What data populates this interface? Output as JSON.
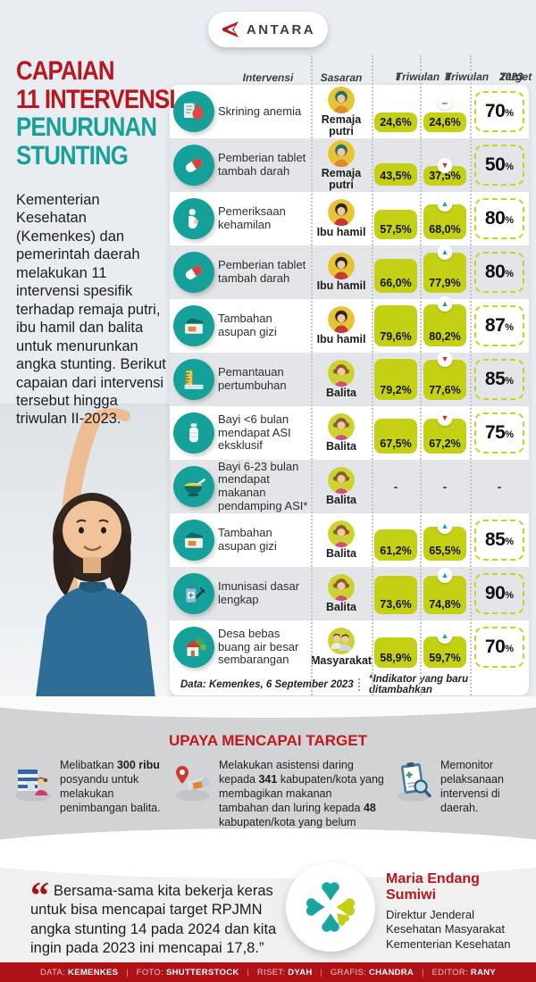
{
  "logo": {
    "text": "ANTARA"
  },
  "title": {
    "line1": "CAPAIAN",
    "line2": "11 INTERVENSI",
    "line3": "PENURUNAN",
    "line4": "STUNTING"
  },
  "intro": "Kementerian Kesehatan (Kemenkes) dan pemerintah daerah melakukan 11 intervensi spesifik terhadap remaja putri, ibu hamil dan balita untuk menurunkan angka stunting. Berikut capaian dari intervensi tersebut hingga triwulan II-2023.",
  "colors": {
    "accent_red": "#b5181e",
    "accent_teal": "#17a09a",
    "lime": "#c4d013",
    "stripe_gray": "#e3e5e8",
    "section_gray": "#d2d3d5",
    "credits_red": "#ae1116"
  },
  "table": {
    "headers": {
      "intervensi": "Intervensi",
      "sasaran": "Sasaran",
      "t1": "Triwulan",
      "t1_sub": "I",
      "t2": "Triwulan",
      "t2_sub": "II",
      "target": "Target",
      "target_sub": "2023"
    },
    "percent": "%",
    "rows": [
      {
        "icon": "anemia-screening-icon",
        "label": "Skrining anemia",
        "avatar": "remaja-putri-avatar",
        "sasaran": "Remaja putri",
        "t1": "24,6%",
        "t1_val": 24.6,
        "t2": "24,6%",
        "t2_val": 24.6,
        "trend": "flat",
        "target": "70"
      },
      {
        "icon": "tablet-icon",
        "label": "Pemberian tablet tambah darah",
        "avatar": "remaja-putri-avatar",
        "sasaran": "Remaja putri",
        "t1": "43,5%",
        "t1_val": 43.5,
        "t2": "37,5%",
        "t2_val": 37.5,
        "trend": "down",
        "target": "50"
      },
      {
        "icon": "pregnancy-check-icon",
        "label": "Pemeriksaan kehamilan",
        "avatar": "ibu-hamil-avatar",
        "sasaran": "Ibu hamil",
        "t1": "57,5%",
        "t1_val": 57.5,
        "t2": "68,0%",
        "t2_val": 68.0,
        "trend": "up",
        "target": "80"
      },
      {
        "icon": "tablet-icon",
        "label": "Pemberian tablet tambah darah",
        "avatar": "ibu-hamil-avatar",
        "sasaran": "Ibu hamil",
        "t1": "66,0%",
        "t1_val": 66.0,
        "t2": "77,9%",
        "t2_val": 77.9,
        "trend": "up",
        "target": "80"
      },
      {
        "icon": "food-box-icon",
        "label": "Tambahan asupan gizi",
        "avatar": "ibu-hamil-avatar",
        "sasaran": "Ibu hamil",
        "t1": "79,6%",
        "t1_val": 79.6,
        "t2": "80,2%",
        "t2_val": 80.2,
        "trend": "up",
        "target": "87"
      },
      {
        "icon": "growth-monitor-icon",
        "label": "Pemantauan pertumbuhan",
        "avatar": "balita-avatar",
        "sasaran": "Balita",
        "t1": "79,2%",
        "t1_val": 79.2,
        "t2": "77,6%",
        "t2_val": 77.6,
        "trend": "down",
        "target": "85"
      },
      {
        "icon": "breastfeeding-icon",
        "label": "Bayi <6 bulan mendapat ASI eksklusif",
        "avatar": "balita-avatar",
        "sasaran": "Balita",
        "t1": "67,5%",
        "t1_val": 67.5,
        "t2": "67,2%",
        "t2_val": 67.2,
        "trend": "down",
        "target": "75"
      },
      {
        "icon": "porridge-icon",
        "label": "Bayi 6-23 bulan mendapat makanan pendamping ASI*",
        "avatar": "balita-avatar",
        "sasaran": "Balita",
        "t1": "-",
        "t1_val": null,
        "t2": "-",
        "t2_val": null,
        "trend": null,
        "target": "-"
      },
      {
        "icon": "food-box-icon",
        "label": "Tambahan asupan gizi",
        "avatar": "balita-avatar",
        "sasaran": "Balita",
        "t1": "61,2%",
        "t1_val": 61.2,
        "t2": "65,5%",
        "t2_val": 65.5,
        "trend": "up",
        "target": "85"
      },
      {
        "icon": "immunization-icon",
        "label": "Imunisasi dasar lengkap",
        "avatar": "balita-avatar",
        "sasaran": "Balita",
        "t1": "73,6%",
        "t1_val": 73.6,
        "t2": "74,8%",
        "t2_val": 74.8,
        "trend": "up",
        "target": "90"
      },
      {
        "icon": "village-icon",
        "label": "Desa bebas buang air besar sembarangan",
        "avatar": "masyarakat-avatar",
        "sasaran": "Masyarakat",
        "t1": "58,9%",
        "t1_val": 58.9,
        "t2": "59,7%",
        "t2_val": 59.7,
        "trend": "up",
        "target": "70"
      }
    ],
    "footnote_left": "Data: Kemenkes, 6 September 2023",
    "footnote_right": "*Indikator yang baru ditambahkan"
  },
  "trend_glyphs": {
    "up": "▲",
    "down": "▼",
    "flat": "–"
  },
  "upaya": {
    "heading": "UPAYA MENCAPAI TARGET",
    "items": [
      {
        "icon": "posyandu-icon",
        "runs": [
          {
            "b": false,
            "t": "Melibatkan "
          },
          {
            "b": true,
            "t": "300 ribu"
          },
          {
            "b": false,
            "t": " posyandu untuk melakukan penimbangan balita."
          }
        ]
      },
      {
        "icon": "food-assistance-icon",
        "runs": [
          {
            "b": false,
            "t": "Melakukan asistensi daring kepada "
          },
          {
            "b": true,
            "t": "341"
          },
          {
            "b": false,
            "t": " kabupaten/kota yang membagikan makanan tambahan dan luring kepada "
          },
          {
            "b": true,
            "t": "48"
          },
          {
            "b": false,
            "t": " kabupaten/kota yang belum memberikan makanan tambahan."
          }
        ]
      },
      {
        "icon": "monitoring-icon",
        "runs": [
          {
            "b": false,
            "t": "Memonitor pelaksanaan intervensi di daerah."
          }
        ]
      }
    ]
  },
  "quote": {
    "mark": "“",
    "text": "Bersama-sama kita bekerja keras untuk bisa mencapai target RPJMN angka stunting 14 pada 2024 dan kita ingin pada 2023 ini mencapai 17,8.”",
    "author": "Maria Endang Sumiwi",
    "role": "Direktur Jenderal Kesehatan Masyarakat Kementerian Kesehatan"
  },
  "credits": {
    "separator": "|",
    "items": [
      {
        "label": "DATA:",
        "value": "KEMENKES"
      },
      {
        "label": "FOTO:",
        "value": "SHUTTERSTOCK"
      },
      {
        "label": "RISET:",
        "value": "DYAH"
      },
      {
        "label": "GRAFIS:",
        "value": "CHANDRA"
      },
      {
        "label": "EDITOR:",
        "value": "RANY"
      }
    ]
  },
  "chart_data": {
    "type": "table",
    "title": "Capaian 11 Intervensi Penurunan Stunting",
    "columns": [
      "Intervensi",
      "Sasaran",
      "Triwulan I",
      "Triwulan II",
      "Target 2023"
    ],
    "rows": [
      [
        "Skrining anemia",
        "Remaja putri",
        "24,6%",
        "24,6%",
        "70%"
      ],
      [
        "Pemberian tablet tambah darah",
        "Remaja putri",
        "43,5%",
        "37,5%",
        "50%"
      ],
      [
        "Pemeriksaan kehamilan",
        "Ibu hamil",
        "57,5%",
        "68,0%",
        "80%"
      ],
      [
        "Pemberian tablet tambah darah",
        "Ibu hamil",
        "66,0%",
        "77,9%",
        "80%"
      ],
      [
        "Tambahan asupan gizi",
        "Ibu hamil",
        "79,6%",
        "80,2%",
        "87%"
      ],
      [
        "Pemantauan pertumbuhan",
        "Balita",
        "79,2%",
        "77,6%",
        "85%"
      ],
      [
        "Bayi <6 bulan mendapat ASI eksklusif",
        "Balita",
        "67,5%",
        "67,2%",
        "75%"
      ],
      [
        "Bayi 6-23 bulan mendapat makanan pendamping ASI*",
        "Balita",
        "-",
        "-",
        "-"
      ],
      [
        "Tambahan asupan gizi",
        "Balita",
        "61,2%",
        "65,5%",
        "85%"
      ],
      [
        "Imunisasi dasar lengkap",
        "Balita",
        "73,6%",
        "74,8%",
        "90%"
      ],
      [
        "Desa bebas buang air besar sembarangan",
        "Masyarakat",
        "58,9%",
        "59,7%",
        "70%"
      ]
    ],
    "series": [
      {
        "name": "Triwulan I",
        "values": [
          24.6,
          43.5,
          57.5,
          66.0,
          79.6,
          79.2,
          67.5,
          null,
          61.2,
          73.6,
          58.9
        ]
      },
      {
        "name": "Triwulan II",
        "values": [
          24.6,
          37.5,
          68.0,
          77.9,
          80.2,
          77.6,
          67.2,
          null,
          65.5,
          74.8,
          59.7
        ]
      },
      {
        "name": "Target 2023",
        "values": [
          70,
          50,
          80,
          80,
          87,
          85,
          75,
          null,
          85,
          90,
          70
        ]
      }
    ],
    "source": "Data: Kemenkes, 6 September 2023",
    "note": "*Indikator yang baru ditambahkan"
  }
}
